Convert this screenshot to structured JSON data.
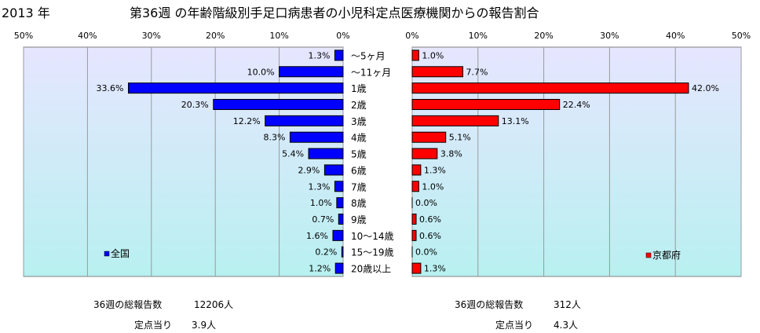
{
  "header": {
    "year": "2013 年",
    "title": "第36週 の年齢階級別手足口病患者の小児科定点医療機関からの報告割合"
  },
  "chart_data": [
    {
      "type": "bar",
      "orientation": "horizontal-reversed",
      "categories": [
        "～5ヶ月",
        "～11ヶ月",
        "1歳",
        "2歳",
        "3歳",
        "4歳",
        "5歳",
        "6歳",
        "7歳",
        "8歳",
        "9歳",
        "10～14歳",
        "15～19歳",
        "20歳以上"
      ],
      "series": [
        {
          "name": "全国",
          "values": [
            1.3,
            10.0,
            33.6,
            20.3,
            12.2,
            8.3,
            5.4,
            2.9,
            1.3,
            1.0,
            0.7,
            1.6,
            0.2,
            1.2
          ],
          "color": "#0000ff"
        }
      ],
      "data_labels": [
        "1.3%",
        "10.0%",
        "33.6%",
        "20.3%",
        "12.2%",
        "8.3%",
        "5.4%",
        "2.9%",
        "1.3%",
        "1.0%",
        "0.7%",
        "1.6%",
        "0.2%",
        "1.2%"
      ],
      "xlim": [
        0,
        50
      ],
      "ticks": [
        "50%",
        "40%",
        "30%",
        "20%",
        "10%",
        "0%"
      ],
      "legend": "bottom-left",
      "grid": true
    },
    {
      "type": "bar",
      "orientation": "horizontal",
      "categories": [
        "～5ヶ月",
        "～11ヶ月",
        "1歳",
        "2歳",
        "3歳",
        "4歳",
        "5歳",
        "6歳",
        "7歳",
        "8歳",
        "9歳",
        "10～14歳",
        "15～19歳",
        "20歳以上"
      ],
      "series": [
        {
          "name": "京都府",
          "values": [
            1.0,
            7.7,
            42.0,
            22.4,
            13.1,
            5.1,
            3.8,
            1.3,
            1.0,
            0.0,
            0.6,
            0.6,
            0.0,
            1.3
          ],
          "color": "#ff0000"
        }
      ],
      "data_labels": [
        "1.0%",
        "7.7%",
        "42.0%",
        "22.4%",
        "13.1%",
        "5.1%",
        "3.8%",
        "1.3%",
        "1.0%",
        "0.0%",
        "0.6%",
        "0.6%",
        "0.0%",
        "1.3%"
      ],
      "xlim": [
        0,
        50
      ],
      "ticks": [
        "0%",
        "10%",
        "20%",
        "30%",
        "40%",
        "50%"
      ],
      "legend": "bottom-right",
      "grid": true
    }
  ],
  "colors": {
    "plot_bg_top": "#e6e6ff",
    "plot_bg_bottom": "#b8f0f0",
    "grid": "#9a9a9a"
  },
  "stats": {
    "national": {
      "reports_label": "36週の総報告数",
      "reports_value": "12206人",
      "per_site_label": "定点当り",
      "per_site_value": "3.9人"
    },
    "kyoto": {
      "reports_label": "36週の総報告数",
      "reports_value": "312人",
      "per_site_label": "定点当り",
      "per_site_value": "4.3人"
    }
  }
}
